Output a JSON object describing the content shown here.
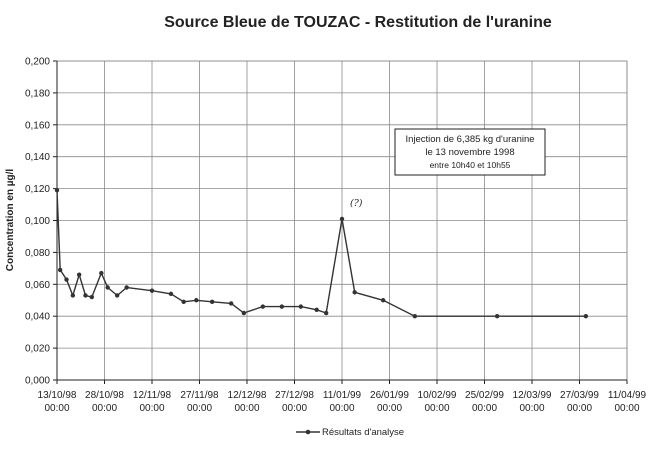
{
  "chart_data": {
    "type": "line",
    "title": "Source Bleue de TOUZAC - Restitution de l'uranine",
    "xlabel": "",
    "ylabel": "Concentration en µg/l",
    "ylim": [
      0,
      0.2
    ],
    "yticks": [
      "0,000",
      "0,020",
      "0,040",
      "0,060",
      "0,080",
      "0,100",
      "0,120",
      "0,140",
      "0,160",
      "0,180",
      "0,200"
    ],
    "xlim": [
      "1998-10-13",
      "1999-04-11"
    ],
    "xticks": [
      {
        "date": "1998-10-13",
        "line1": "13/10/98",
        "line2": "00:00"
      },
      {
        "date": "1998-10-28",
        "line1": "28/10/98",
        "line2": "00:00"
      },
      {
        "date": "1998-11-12",
        "line1": "12/11/98",
        "line2": "00:00"
      },
      {
        "date": "1998-11-27",
        "line1": "27/11/98",
        "line2": "00:00"
      },
      {
        "date": "1998-12-12",
        "line1": "12/12/98",
        "line2": "00:00"
      },
      {
        "date": "1998-12-27",
        "line1": "27/12/98",
        "line2": "00:00"
      },
      {
        "date": "1999-01-11",
        "line1": "11/01/99",
        "line2": "00:00"
      },
      {
        "date": "1999-01-26",
        "line1": "26/01/99",
        "line2": "00:00"
      },
      {
        "date": "1999-02-10",
        "line1": "10/02/99",
        "line2": "00:00"
      },
      {
        "date": "1999-02-25",
        "line1": "25/02/99",
        "line2": "00:00"
      },
      {
        "date": "1999-03-12",
        "line1": "12/03/99",
        "line2": "00:00"
      },
      {
        "date": "1999-03-27",
        "line1": "27/03/99",
        "line2": "00:00"
      },
      {
        "date": "1999-04-11",
        "line1": "11/04/99",
        "line2": "00:00"
      }
    ],
    "grid": true,
    "legend_position": "bottom",
    "series": [
      {
        "name": "Résultats d'analyse",
        "x": [
          "1998-10-13",
          "1998-10-14",
          "1998-10-16",
          "1998-10-18",
          "1998-10-20",
          "1998-10-22",
          "1998-10-24",
          "1998-10-27",
          "1998-10-29",
          "1998-11-01",
          "1998-11-04",
          "1998-11-12",
          "1998-11-18",
          "1998-11-22",
          "1998-11-26",
          "1998-12-01",
          "1998-12-07",
          "1998-12-11",
          "1998-12-17",
          "1998-12-23",
          "1998-12-29",
          "1999-01-03",
          "1999-01-06",
          "1999-01-11",
          "1999-01-15",
          "1999-01-24",
          "1999-02-03",
          "1999-03-01",
          "1999-03-29"
        ],
        "y": [
          0.119,
          0.069,
          0.063,
          0.053,
          0.066,
          0.053,
          0.052,
          0.067,
          0.058,
          0.053,
          0.058,
          0.056,
          0.054,
          0.049,
          0.05,
          0.049,
          0.048,
          0.042,
          0.046,
          0.046,
          0.046,
          0.044,
          0.042,
          0.101,
          0.055,
          0.05,
          0.04,
          0.04,
          0.04
        ]
      }
    ],
    "annotation": {
      "line1": "Injection de 6,385 kg d'uranine",
      "line2": "le 13 novembre 1998",
      "line3": "entre 10h40 et 10h55"
    },
    "mark_note": "(?)"
  }
}
